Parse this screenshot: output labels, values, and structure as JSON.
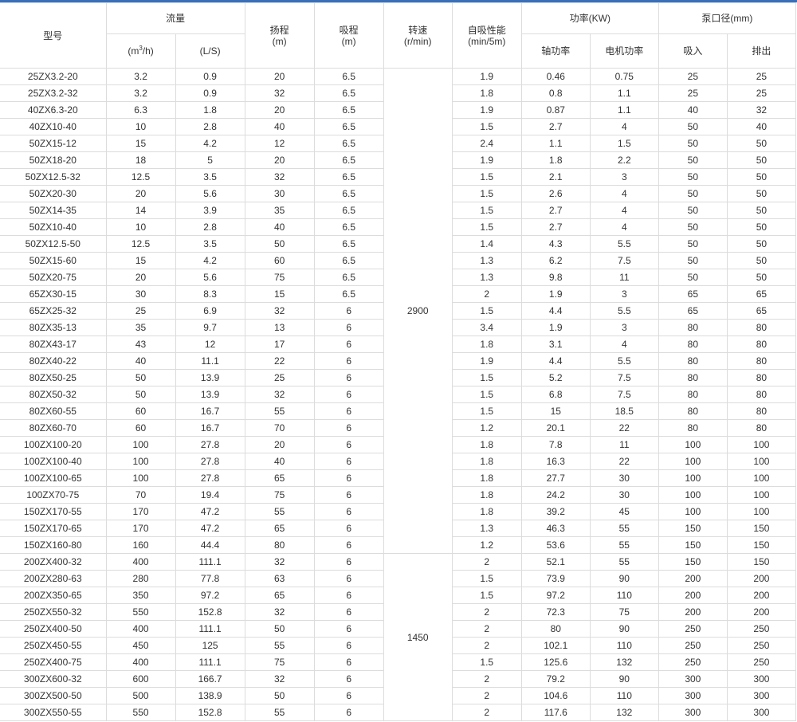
{
  "header": {
    "model": "型号",
    "flow": "流量",
    "flow_m3h_pre": "(m",
    "flow_m3h_sup": "3",
    "flow_m3h_post": "/h)",
    "flow_ls": "(L/S)",
    "head": "扬程",
    "head_unit": "(m)",
    "suction": "吸程",
    "suction_unit": "(m)",
    "speed": "转速",
    "speed_unit": "(r/min)",
    "self_priming": "自吸性能",
    "self_priming_unit": "(min/5m)",
    "power": "功率(KW)",
    "shaft_power": "轴功率",
    "motor_power": "电机功率",
    "port": "泵口径(mm)",
    "inlet": "吸入",
    "outlet": "排出"
  },
  "speed_groups": [
    {
      "value": "2900",
      "rows": 29
    },
    {
      "value": "1450",
      "rows": 10
    }
  ],
  "rows": [
    [
      "25ZX3.2-20",
      "3.2",
      "0.9",
      "20",
      "6.5",
      "1.9",
      "0.46",
      "0.75",
      "25",
      "25"
    ],
    [
      "25ZX3.2-32",
      "3.2",
      "0.9",
      "32",
      "6.5",
      "1.8",
      "0.8",
      "1.1",
      "25",
      "25"
    ],
    [
      "40ZX6.3-20",
      "6.3",
      "1.8",
      "20",
      "6.5",
      "1.9",
      "0.87",
      "1.1",
      "40",
      "32"
    ],
    [
      "40ZX10-40",
      "10",
      "2.8",
      "40",
      "6.5",
      "1.5",
      "2.7",
      "4",
      "50",
      "40"
    ],
    [
      "50ZX15-12",
      "15",
      "4.2",
      "12",
      "6.5",
      "2.4",
      "1.1",
      "1.5",
      "50",
      "50"
    ],
    [
      "50ZX18-20",
      "18",
      "5",
      "20",
      "6.5",
      "1.9",
      "1.8",
      "2.2",
      "50",
      "50"
    ],
    [
      "50ZX12.5-32",
      "12.5",
      "3.5",
      "32",
      "6.5",
      "1.5",
      "2.1",
      "3",
      "50",
      "50"
    ],
    [
      "50ZX20-30",
      "20",
      "5.6",
      "30",
      "6.5",
      "1.5",
      "2.6",
      "4",
      "50",
      "50"
    ],
    [
      "50ZX14-35",
      "14",
      "3.9",
      "35",
      "6.5",
      "1.5",
      "2.7",
      "4",
      "50",
      "50"
    ],
    [
      "50ZX10-40",
      "10",
      "2.8",
      "40",
      "6.5",
      "1.5",
      "2.7",
      "4",
      "50",
      "50"
    ],
    [
      "50ZX12.5-50",
      "12.5",
      "3.5",
      "50",
      "6.5",
      "1.4",
      "4.3",
      "5.5",
      "50",
      "50"
    ],
    [
      "50ZX15-60",
      "15",
      "4.2",
      "60",
      "6.5",
      "1.3",
      "6.2",
      "7.5",
      "50",
      "50"
    ],
    [
      "50ZX20-75",
      "20",
      "5.6",
      "75",
      "6.5",
      "1.3",
      "9.8",
      "11",
      "50",
      "50"
    ],
    [
      "65ZX30-15",
      "30",
      "8.3",
      "15",
      "6.5",
      "2",
      "1.9",
      "3",
      "65",
      "65"
    ],
    [
      "65ZX25-32",
      "25",
      "6.9",
      "32",
      "6",
      "1.5",
      "4.4",
      "5.5",
      "65",
      "65"
    ],
    [
      "80ZX35-13",
      "35",
      "9.7",
      "13",
      "6",
      "3.4",
      "1.9",
      "3",
      "80",
      "80"
    ],
    [
      "80ZX43-17",
      "43",
      "12",
      "17",
      "6",
      "1.8",
      "3.1",
      "4",
      "80",
      "80"
    ],
    [
      "80ZX40-22",
      "40",
      "11.1",
      "22",
      "6",
      "1.9",
      "4.4",
      "5.5",
      "80",
      "80"
    ],
    [
      "80ZX50-25",
      "50",
      "13.9",
      "25",
      "6",
      "1.5",
      "5.2",
      "7.5",
      "80",
      "80"
    ],
    [
      "80ZX50-32",
      "50",
      "13.9",
      "32",
      "6",
      "1.5",
      "6.8",
      "7.5",
      "80",
      "80"
    ],
    [
      "80ZX60-55",
      "60",
      "16.7",
      "55",
      "6",
      "1.5",
      "15",
      "18.5",
      "80",
      "80"
    ],
    [
      "80ZX60-70",
      "60",
      "16.7",
      "70",
      "6",
      "1.2",
      "20.1",
      "22",
      "80",
      "80"
    ],
    [
      "100ZX100-20",
      "100",
      "27.8",
      "20",
      "6",
      "1.8",
      "7.8",
      "11",
      "100",
      "100"
    ],
    [
      "100ZX100-40",
      "100",
      "27.8",
      "40",
      "6",
      "1.8",
      "16.3",
      "22",
      "100",
      "100"
    ],
    [
      "100ZX100-65",
      "100",
      "27.8",
      "65",
      "6",
      "1.8",
      "27.7",
      "30",
      "100",
      "100"
    ],
    [
      "100ZX70-75",
      "70",
      "19.4",
      "75",
      "6",
      "1.8",
      "24.2",
      "30",
      "100",
      "100"
    ],
    [
      "150ZX170-55",
      "170",
      "47.2",
      "55",
      "6",
      "1.8",
      "39.2",
      "45",
      "100",
      "100"
    ],
    [
      "150ZX170-65",
      "170",
      "47.2",
      "65",
      "6",
      "1.3",
      "46.3",
      "55",
      "150",
      "150"
    ],
    [
      "150ZX160-80",
      "160",
      "44.4",
      "80",
      "6",
      "1.2",
      "53.6",
      "55",
      "150",
      "150"
    ],
    [
      "200ZX400-32",
      "400",
      "111.1",
      "32",
      "6",
      "2",
      "52.1",
      "55",
      "150",
      "150"
    ],
    [
      "200ZX280-63",
      "280",
      "77.8",
      "63",
      "6",
      "1.5",
      "73.9",
      "90",
      "200",
      "200"
    ],
    [
      "200ZX350-65",
      "350",
      "97.2",
      "65",
      "6",
      "1.5",
      "97.2",
      "110",
      "200",
      "200"
    ],
    [
      "250ZX550-32",
      "550",
      "152.8",
      "32",
      "6",
      "2",
      "72.3",
      "75",
      "200",
      "200"
    ],
    [
      "250ZX400-50",
      "400",
      "111.1",
      "50",
      "6",
      "2",
      "80",
      "90",
      "250",
      "250"
    ],
    [
      "250ZX450-55",
      "450",
      "125",
      "55",
      "6",
      "2",
      "102.1",
      "110",
      "250",
      "250"
    ],
    [
      "250ZX400-75",
      "400",
      "111.1",
      "75",
      "6",
      "1.5",
      "125.6",
      "132",
      "250",
      "250"
    ],
    [
      "300ZX600-32",
      "600",
      "166.7",
      "32",
      "6",
      "2",
      "79.2",
      "90",
      "300",
      "300"
    ],
    [
      "300ZX500-50",
      "500",
      "138.9",
      "50",
      "6",
      "2",
      "104.6",
      "110",
      "300",
      "300"
    ],
    [
      "300ZX550-55",
      "550",
      "152.8",
      "55",
      "6",
      "2",
      "117.6",
      "132",
      "300",
      "300"
    ]
  ],
  "colors": {
    "accent_bar": "#3b70b9",
    "border": "#dcdcdc",
    "text": "#333333"
  }
}
